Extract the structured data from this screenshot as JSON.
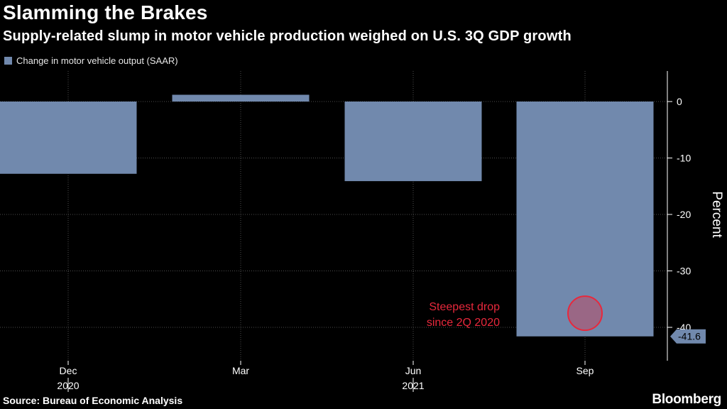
{
  "header": {
    "title": "Slamming the Brakes",
    "subtitle": "Supply-related slump in motor vehicle production weighed on U.S. 3Q GDP growth"
  },
  "footer": {
    "source": "Source: Bureau of Economic Analysis",
    "brand": "Bloomberg"
  },
  "colors": {
    "bar": "#7189ad",
    "background": "#000000",
    "annotation": "#e8283c",
    "grid": "#4d4d4d"
  },
  "chart_data": {
    "type": "bar",
    "title": "Slamming the Brakes",
    "subtitle": "Supply-related slump in motor vehicle production weighed on U.S. 3Q GDP growth",
    "categories": [
      "Dec",
      "Mar",
      "Jun",
      "Sep"
    ],
    "year_labels": [
      {
        "category": "Dec",
        "label": "2020"
      },
      {
        "category": "Jun",
        "label": "2021"
      }
    ],
    "series": [
      {
        "name": "Change in motor vehicle output (SAAR)",
        "values": [
          -12.8,
          1.2,
          -14.1,
          -41.6
        ]
      }
    ],
    "xlabel": "",
    "ylabel": "Percent",
    "ylim": [
      -46,
      5
    ],
    "yticks": [
      0,
      -10,
      -20,
      -30,
      -40
    ],
    "y_axis_side": "right",
    "grid": true,
    "legend": "top-left",
    "value_label": {
      "category": "Sep",
      "text": "-41.6",
      "value": -41.6
    },
    "annotation": {
      "text_lines": [
        "Steepest drop",
        "since 2Q 2020"
      ],
      "category": "Sep",
      "value": -37.5
    }
  }
}
